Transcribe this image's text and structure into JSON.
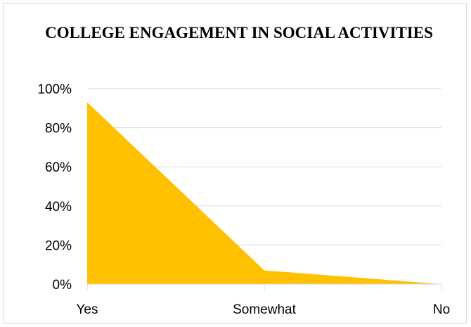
{
  "chart_data": {
    "type": "area",
    "title": "COLLEGE ENGAGEMENT IN SOCIAL ACTIVITIES",
    "categories": [
      "Yes",
      "Somewhat",
      "No"
    ],
    "series": [
      {
        "values": [
          0.93,
          0.07,
          0.0
        ]
      }
    ],
    "y_ticks": [
      "0%",
      "20%",
      "40%",
      "60%",
      "80%",
      "100%"
    ],
    "ylim": [
      0,
      1
    ],
    "grid": true,
    "legend": "none",
    "colors": {
      "area": "#ffc000",
      "grid": "#d9d9d9",
      "axis": "#d9d9d9"
    }
  }
}
